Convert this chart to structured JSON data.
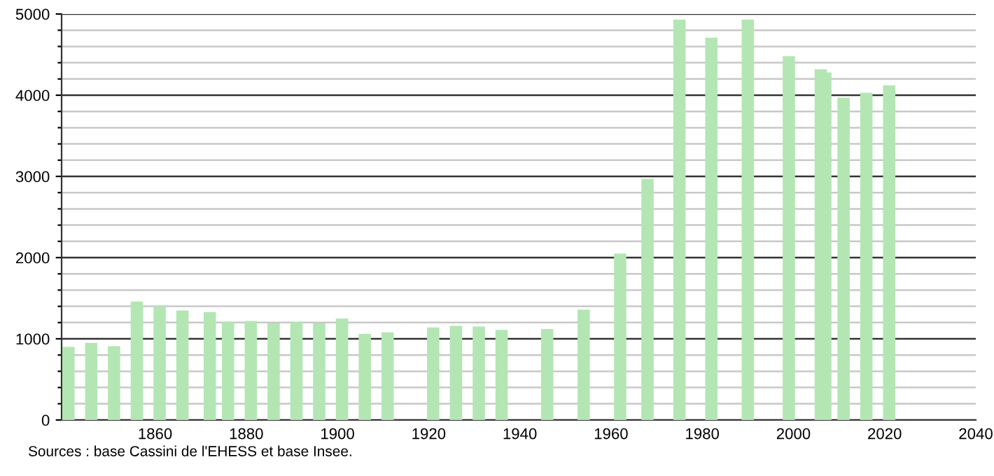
{
  "chart_data": {
    "type": "bar",
    "x": [
      1841,
      1846,
      1851,
      1856,
      1861,
      1866,
      1872,
      1876,
      1881,
      1886,
      1891,
      1896,
      1901,
      1906,
      1911,
      1921,
      1926,
      1931,
      1936,
      1946,
      1954,
      1962,
      1968,
      1975,
      1982,
      1990,
      1999,
      2006,
      2007,
      2011,
      2016,
      2021
    ],
    "values": [
      900,
      950,
      910,
      1460,
      1400,
      1350,
      1330,
      1210,
      1220,
      1190,
      1210,
      1190,
      1250,
      1060,
      1080,
      1140,
      1160,
      1150,
      1110,
      1120,
      1360,
      2050,
      2970,
      4930,
      4710,
      4930,
      4480,
      4320,
      4280,
      3970,
      4030,
      4120
    ],
    "color": "#b3e6b3",
    "xlim": [
      1839.5,
      2040
    ],
    "xticks": [
      1860,
      1880,
      1900,
      1920,
      1940,
      1960,
      1980,
      2000,
      2020,
      2040
    ],
    "ylim": [
      0,
      5000
    ],
    "yticks": [
      0,
      {
        "value": 200,
        "label": null
      },
      {
        "value": 400,
        "label": null
      },
      {
        "value": 600,
        "label": null
      },
      {
        "value": 800,
        "label": null
      },
      1000,
      {
        "value": 1200,
        "label": null
      },
      {
        "value": 1400,
        "label": null
      },
      {
        "value": 1600,
        "label": null
      },
      {
        "value": 1800,
        "label": null
      },
      2000,
      {
        "value": 2200,
        "label": null
      },
      {
        "value": 2400,
        "label": null
      },
      {
        "value": 2600,
        "label": null
      },
      {
        "value": 2800,
        "label": null
      },
      3000,
      {
        "value": 3200,
        "label": null
      },
      {
        "value": 3400,
        "label": null
      },
      {
        "value": 3600,
        "label": null
      },
      {
        "value": 3800,
        "label": null
      },
      4000,
      {
        "value": 4200,
        "label": null
      },
      {
        "value": 4400,
        "label": null
      },
      {
        "value": 4600,
        "label": null
      },
      {
        "value": 4800,
        "label": null
      },
      5000
    ],
    "grid": "y",
    "annotations": [
      "Sources : base Cassini de l'EHESS et base Insee."
    ]
  }
}
